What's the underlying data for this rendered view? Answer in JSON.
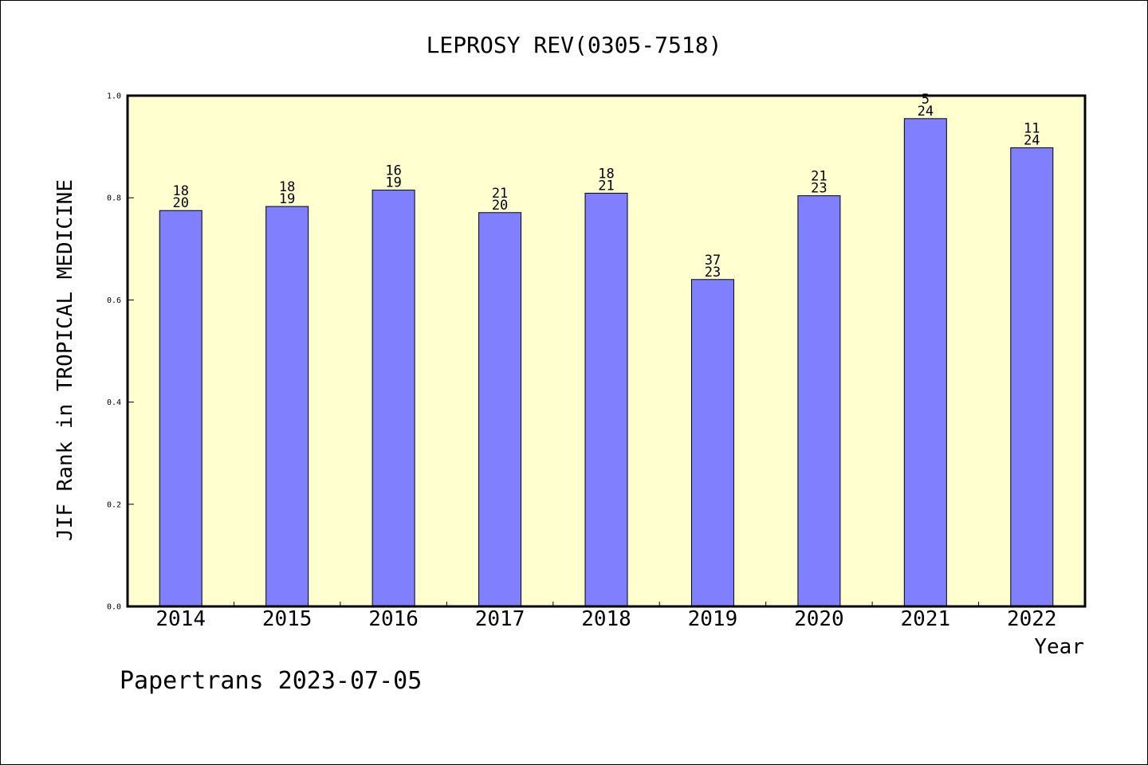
{
  "chart_data": {
    "type": "bar",
    "title": "LEPROSY REV(0305-7518)",
    "xlabel": "Year",
    "ylabel": "JIF Rank in TROPICAL MEDICINE",
    "ylim": [
      0,
      1.0
    ],
    "yticks": [
      "0.0",
      "0.2",
      "0.4",
      "0.6",
      "0.8",
      "1.0"
    ],
    "categories": [
      "2014",
      "2015",
      "2016",
      "2017",
      "2018",
      "2019",
      "2020",
      "2021",
      "2022"
    ],
    "values": [
      0.775,
      0.783,
      0.815,
      0.771,
      0.809,
      0.64,
      0.804,
      0.955,
      0.898
    ],
    "labels_top": [
      "18",
      "18",
      "16",
      "21",
      "18",
      "37",
      "21",
      "5",
      "11"
    ],
    "labels_bottom": [
      "20",
      "19",
      "19",
      "20",
      "21",
      "23",
      "23",
      "24",
      "24"
    ],
    "grid": false,
    "colors": {
      "bar": "#8080ff",
      "plot_bg": "#ffffd0",
      "axis": "#000000"
    }
  },
  "footer": "Papertrans 2023-07-05"
}
